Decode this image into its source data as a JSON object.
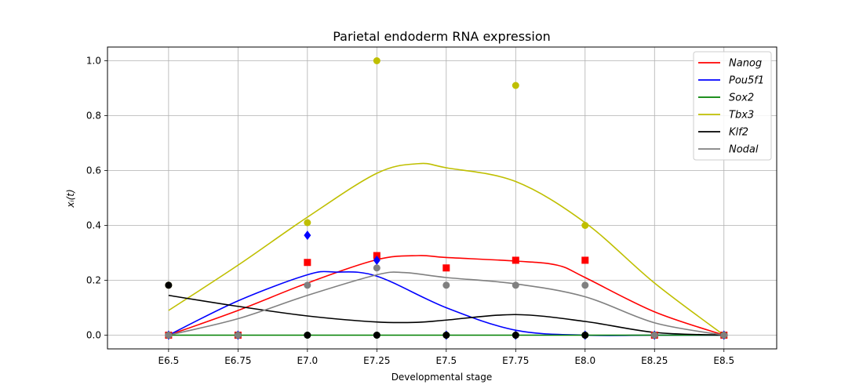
{
  "chart_data": {
    "type": "line",
    "title": "Parietal endoderm RNA expression",
    "xlabel": "Developmental stage",
    "ylabel": "x_i(t)",
    "ylabel_display": "xᵢ(t)",
    "x_tick_labels": [
      "E6.5",
      "E6.75",
      "E7.0",
      "E7.25",
      "E7.5",
      "E7.75",
      "E8.0",
      "E8.25",
      "E8.5"
    ],
    "x_tick_values": [
      6.5,
      6.75,
      7.0,
      7.25,
      7.5,
      7.75,
      8.0,
      8.25,
      8.5
    ],
    "xlim": [
      6.28,
      8.69
    ],
    "ylim": [
      -0.05,
      1.05
    ],
    "y_ticks": [
      0.0,
      0.2,
      0.4,
      0.6,
      0.8,
      1.0
    ],
    "y_tick_labels": [
      "0.0",
      "0.2",
      "0.4",
      "0.6",
      "0.8",
      "1.0"
    ],
    "grid": true,
    "legend_position": "top-right",
    "series": [
      {
        "name": "Nanog",
        "color": "#ff0000",
        "marker": "square",
        "curve": [
          [
            6.5,
            0.0
          ],
          [
            6.75,
            0.09
          ],
          [
            7.0,
            0.19
          ],
          [
            7.25,
            0.275
          ],
          [
            7.4,
            0.29
          ],
          [
            7.5,
            0.283
          ],
          [
            7.75,
            0.27
          ],
          [
            7.9,
            0.255
          ],
          [
            8.0,
            0.21
          ],
          [
            8.25,
            0.085
          ],
          [
            8.5,
            0.0
          ]
        ],
        "points": [
          [
            6.5,
            0.0
          ],
          [
            6.75,
            0.0
          ],
          [
            7.0,
            0.265
          ],
          [
            7.25,
            0.29
          ],
          [
            7.5,
            0.245
          ],
          [
            7.75,
            0.273
          ],
          [
            8.0,
            0.273
          ],
          [
            8.25,
            0.0
          ],
          [
            8.5,
            0.0
          ]
        ]
      },
      {
        "name": "Pou5f1",
        "color": "#0000ff",
        "marker": "diamond",
        "curve": [
          [
            6.5,
            0.0
          ],
          [
            6.75,
            0.125
          ],
          [
            7.0,
            0.22
          ],
          [
            7.1,
            0.23
          ],
          [
            7.25,
            0.215
          ],
          [
            7.5,
            0.1
          ],
          [
            7.75,
            0.018
          ],
          [
            8.0,
            0.0
          ],
          [
            8.25,
            0.0
          ],
          [
            8.5,
            0.0
          ]
        ],
        "points": [
          [
            6.5,
            0.0
          ],
          [
            6.75,
            0.0
          ],
          [
            7.0,
            0.364
          ],
          [
            7.25,
            0.273
          ],
          [
            7.5,
            0.0
          ],
          [
            7.75,
            0.0
          ],
          [
            8.0,
            0.0
          ],
          [
            8.25,
            0.0
          ],
          [
            8.5,
            0.0
          ]
        ]
      },
      {
        "name": "Sox2",
        "color": "#008000",
        "marker": "circle",
        "curve": [
          [
            6.5,
            0.0
          ],
          [
            8.5,
            0.0
          ]
        ],
        "points": [
          [
            6.5,
            0.0
          ],
          [
            6.75,
            0.0
          ],
          [
            7.0,
            0.0
          ],
          [
            7.25,
            0.0
          ],
          [
            7.5,
            0.0
          ],
          [
            7.75,
            0.0
          ],
          [
            8.0,
            0.0
          ],
          [
            8.25,
            0.0
          ],
          [
            8.5,
            0.0
          ]
        ]
      },
      {
        "name": "Tbx3",
        "color": "#bfbf00",
        "marker": "circle",
        "curve": [
          [
            6.5,
            0.09
          ],
          [
            6.75,
            0.255
          ],
          [
            7.0,
            0.43
          ],
          [
            7.25,
            0.59
          ],
          [
            7.4,
            0.625
          ],
          [
            7.5,
            0.61
          ],
          [
            7.75,
            0.56
          ],
          [
            8.0,
            0.41
          ],
          [
            8.25,
            0.19
          ],
          [
            8.5,
            0.0
          ]
        ],
        "points": [
          [
            6.5,
            0.182
          ],
          [
            7.0,
            0.41
          ],
          [
            7.25,
            1.0
          ],
          [
            7.75,
            0.91
          ],
          [
            8.0,
            0.4
          ]
        ]
      },
      {
        "name": "Klf2",
        "color": "#000000",
        "marker": "circle",
        "curve": [
          [
            6.5,
            0.145
          ],
          [
            6.75,
            0.105
          ],
          [
            7.0,
            0.07
          ],
          [
            7.25,
            0.048
          ],
          [
            7.4,
            0.047
          ],
          [
            7.5,
            0.055
          ],
          [
            7.75,
            0.075
          ],
          [
            8.0,
            0.05
          ],
          [
            8.25,
            0.01
          ],
          [
            8.5,
            0.0
          ]
        ],
        "points": [
          [
            6.5,
            0.182
          ],
          [
            6.75,
            0.0
          ],
          [
            7.0,
            0.0
          ],
          [
            7.25,
            0.0
          ],
          [
            7.5,
            0.0
          ],
          [
            7.75,
            0.0
          ],
          [
            8.0,
            0.0
          ],
          [
            8.25,
            0.0
          ],
          [
            8.5,
            0.0
          ]
        ]
      },
      {
        "name": "Nodal",
        "color": "#808080",
        "marker": "circle",
        "curve": [
          [
            6.5,
            0.0
          ],
          [
            6.75,
            0.06
          ],
          [
            7.0,
            0.145
          ],
          [
            7.25,
            0.22
          ],
          [
            7.35,
            0.228
          ],
          [
            7.5,
            0.21
          ],
          [
            7.75,
            0.187
          ],
          [
            8.0,
            0.14
          ],
          [
            8.25,
            0.045
          ],
          [
            8.5,
            0.0
          ]
        ],
        "points": [
          [
            6.5,
            0.0
          ],
          [
            6.75,
            0.0
          ],
          [
            7.0,
            0.182
          ],
          [
            7.25,
            0.245
          ],
          [
            7.5,
            0.182
          ],
          [
            7.75,
            0.182
          ],
          [
            8.0,
            0.182
          ],
          [
            8.25,
            0.0
          ],
          [
            8.5,
            0.0
          ]
        ]
      }
    ]
  }
}
